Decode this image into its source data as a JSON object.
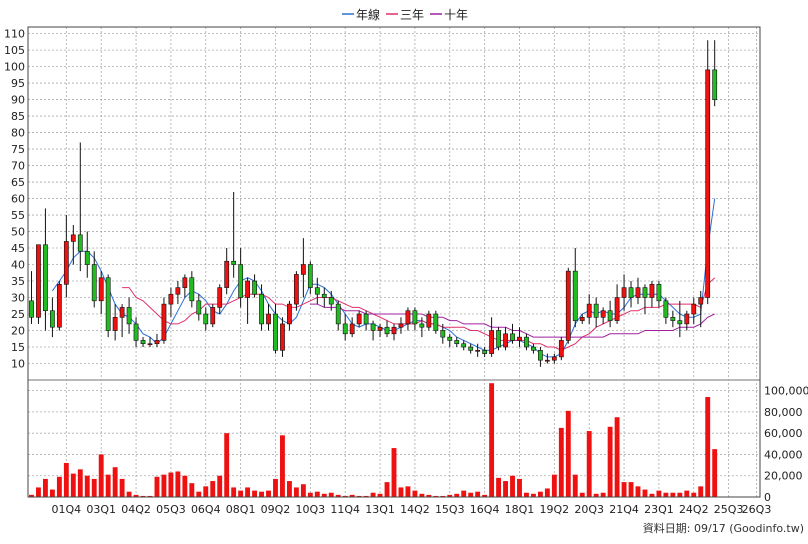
{
  "legend": [
    {
      "label": "年線",
      "color": "#2a6fd6"
    },
    {
      "label": "三年",
      "color": "#e0306a"
    },
    {
      "label": "十年",
      "color": "#a020a0"
    }
  ],
  "footer": "資料日期: 09/17  (Goodinfo.tw)",
  "colors": {
    "up": "#ee1111",
    "down": "#22bb22",
    "volume": "#ee1111",
    "grid": "#aaaaaa"
  },
  "chart_data": {
    "type": "candlestick",
    "price_axis": {
      "ylim": [
        5,
        112
      ],
      "ticks": [
        "10",
        "15",
        "20",
        "25",
        "30",
        "35",
        "40",
        "45",
        "50",
        "55",
        "60",
        "65",
        "70",
        "75",
        "80",
        "85",
        "90",
        "95",
        "100",
        "105",
        "110"
      ]
    },
    "volume_axis": {
      "ylim": [
        0,
        110000
      ],
      "ticks": [
        "0",
        "20,000",
        "40,000",
        "60,000",
        "80,000",
        "100,000"
      ]
    },
    "x_labels": [
      "01Q4",
      "03Q1",
      "04Q2",
      "05Q3",
      "06Q4",
      "08Q1",
      "09Q2",
      "10Q3",
      "11Q4",
      "13Q1",
      "14Q2",
      "15Q3",
      "16Q4",
      "18Q1",
      "19Q2",
      "20Q3",
      "21Q4",
      "23Q1",
      "24Q2",
      "25Q3",
      "26Q3"
    ],
    "label_positions": [
      5,
      10,
      15,
      20,
      25,
      30,
      35,
      40,
      45,
      50,
      55,
      60,
      65,
      70,
      75,
      80,
      85,
      90,
      95,
      100,
      104
    ],
    "quarters": 105,
    "candles": [
      [
        29,
        38,
        22,
        24
      ],
      [
        24,
        46,
        22,
        46
      ],
      [
        46,
        57,
        20,
        26
      ],
      [
        26,
        30,
        18,
        21
      ],
      [
        21,
        35,
        20,
        34
      ],
      [
        34,
        55,
        30,
        47
      ],
      [
        47,
        52,
        40,
        49
      ],
      [
        49,
        77,
        38,
        44
      ],
      [
        44,
        50,
        36,
        40
      ],
      [
        40,
        44,
        27,
        29
      ],
      [
        29,
        38,
        25,
        36
      ],
      [
        36,
        37,
        18,
        20
      ],
      [
        20,
        28,
        17,
        24
      ],
      [
        24,
        28,
        18,
        27
      ],
      [
        27,
        30,
        19,
        22
      ],
      [
        22,
        24,
        15,
        17
      ],
      [
        17,
        18,
        15,
        16
      ],
      [
        16,
        18,
        15,
        16
      ],
      [
        16,
        19,
        15,
        17
      ],
      [
        17,
        30,
        16,
        28
      ],
      [
        28,
        33,
        24,
        31
      ],
      [
        31,
        35,
        28,
        33
      ],
      [
        33,
        37,
        30,
        36
      ],
      [
        36,
        38,
        27,
        29
      ],
      [
        29,
        31,
        23,
        25
      ],
      [
        25,
        27,
        20,
        22
      ],
      [
        22,
        28,
        21,
        27
      ],
      [
        27,
        34,
        25,
        33
      ],
      [
        33,
        45,
        31,
        41
      ],
      [
        41,
        62,
        36,
        40
      ],
      [
        40,
        45,
        27,
        30
      ],
      [
        30,
        36,
        22,
        35
      ],
      [
        35,
        37,
        30,
        31
      ],
      [
        31,
        34,
        20,
        22
      ],
      [
        22,
        28,
        20,
        25
      ],
      [
        25,
        28,
        13,
        14
      ],
      [
        14,
        24,
        12,
        22
      ],
      [
        22,
        29,
        20,
        28
      ],
      [
        28,
        38,
        26,
        37
      ],
      [
        37,
        48,
        30,
        40
      ],
      [
        40,
        41,
        31,
        33
      ],
      [
        33,
        36,
        28,
        31
      ],
      [
        31,
        33,
        27,
        30
      ],
      [
        30,
        32,
        26,
        28
      ],
      [
        28,
        29,
        20,
        22
      ],
      [
        22,
        25,
        17,
        19
      ],
      [
        19,
        24,
        18,
        22
      ],
      [
        22,
        26,
        21,
        25
      ],
      [
        25,
        26,
        20,
        22
      ],
      [
        22,
        23,
        17,
        20
      ],
      [
        20,
        22,
        18,
        21
      ],
      [
        21,
        23,
        18,
        19
      ],
      [
        19,
        22,
        17,
        21
      ],
      [
        21,
        24,
        19,
        22
      ],
      [
        22,
        27,
        20,
        26
      ],
      [
        26,
        27,
        20,
        22
      ],
      [
        22,
        24,
        18,
        21
      ],
      [
        21,
        26,
        20,
        25
      ],
      [
        25,
        26,
        19,
        20
      ],
      [
        20,
        22,
        16,
        18
      ],
      [
        18,
        19,
        15,
        17
      ],
      [
        17,
        18,
        15,
        16
      ],
      [
        16,
        17,
        14,
        15
      ],
      [
        15,
        16,
        13,
        14
      ],
      [
        14,
        16,
        12,
        14
      ],
      [
        14,
        15,
        12,
        13
      ],
      [
        13,
        24,
        12,
        20
      ],
      [
        20,
        21,
        14,
        15
      ],
      [
        15,
        21,
        14,
        19
      ],
      [
        19,
        22,
        16,
        17
      ],
      [
        17,
        21,
        15,
        18
      ],
      [
        18,
        19,
        14,
        15
      ],
      [
        15,
        16,
        13,
        14
      ],
      [
        14,
        15,
        9,
        11
      ],
      [
        11,
        13,
        10,
        11
      ],
      [
        11,
        13,
        10,
        12
      ],
      [
        12,
        18,
        11,
        17
      ],
      [
        17,
        39,
        16,
        38
      ],
      [
        38,
        45,
        21,
        23
      ],
      [
        23,
        25,
        22,
        24
      ],
      [
        24,
        31,
        22,
        28
      ],
      [
        28,
        30,
        21,
        24
      ],
      [
        24,
        27,
        22,
        26
      ],
      [
        26,
        29,
        21,
        23
      ],
      [
        23,
        34,
        22,
        30
      ],
      [
        30,
        37,
        26,
        33
      ],
      [
        33,
        35,
        27,
        30
      ],
      [
        30,
        36,
        28,
        33
      ],
      [
        33,
        34,
        25,
        30
      ],
      [
        30,
        35,
        27,
        34
      ],
      [
        34,
        35,
        27,
        29
      ],
      [
        29,
        30,
        22,
        24
      ],
      [
        24,
        26,
        21,
        23
      ],
      [
        23,
        29,
        18,
        22
      ],
      [
        22,
        26,
        20,
        25
      ],
      [
        25,
        30,
        22,
        28
      ],
      [
        28,
        32,
        21,
        30
      ],
      [
        30,
        108,
        28,
        99
      ],
      [
        99,
        108,
        88,
        90
      ]
    ],
    "volumes": [
      2000,
      9000,
      17000,
      7000,
      19000,
      32000,
      22000,
      26000,
      20000,
      17000,
      40000,
      21000,
      28000,
      17000,
      5000,
      2000,
      1000,
      1000,
      19000,
      21000,
      23000,
      24000,
      20000,
      13000,
      5000,
      10000,
      15000,
      20000,
      60000,
      9000,
      6000,
      9000,
      6000,
      5000,
      6000,
      17000,
      58000,
      15000,
      9000,
      12000,
      4000,
      5000,
      3000,
      4000,
      2000,
      1000,
      2000,
      1000,
      1000,
      4000,
      3000,
      14000,
      46000,
      9000,
      10000,
      6000,
      3000,
      2000,
      1000,
      1000,
      2000,
      3000,
      6000,
      4000,
      5000,
      2000,
      107000,
      18000,
      15000,
      20000,
      17000,
      4000,
      3000,
      5000,
      8000,
      21000,
      65000,
      81000,
      21000,
      4000,
      62000,
      3000,
      4000,
      66000,
      75000,
      14000,
      14000,
      10000,
      7000,
      3000,
      6000,
      4000,
      4000,
      4000,
      6000,
      4000,
      10000,
      94000,
      45000
    ],
    "series": [
      {
        "name": "年線",
        "values": [
          null,
          null,
          null,
          32,
          35,
          38,
          42,
          44,
          44,
          42,
          38,
          33,
          28,
          25,
          24,
          22,
          19,
          18,
          16,
          18,
          22,
          26,
          30,
          32,
          31,
          29,
          26,
          25,
          28,
          32,
          35,
          36,
          35,
          32,
          28,
          25,
          23,
          22,
          24,
          29,
          34,
          34,
          33,
          31,
          28,
          25,
          22,
          21,
          22,
          22,
          21,
          20,
          20,
          21,
          22,
          23,
          23,
          22,
          22,
          21,
          20,
          18,
          17,
          16,
          15,
          14,
          14,
          15,
          16,
          17,
          17,
          16,
          15,
          13,
          12,
          12,
          13,
          17,
          22,
          25,
          26,
          25,
          26,
          25,
          25,
          27,
          30,
          31,
          31,
          31,
          31,
          29,
          27,
          25,
          24,
          24,
          25,
          45,
          60
        ]
      },
      {
        "name": "三年",
        "values": [
          null,
          null,
          null,
          null,
          null,
          null,
          null,
          null,
          null,
          null,
          null,
          null,
          null,
          33,
          33,
          30,
          29,
          27,
          25,
          23,
          22,
          22,
          23,
          25,
          26,
          28,
          28,
          28,
          28,
          29,
          30,
          31,
          31,
          31,
          30,
          28,
          28,
          27,
          27,
          28,
          29,
          30,
          30,
          30,
          29,
          28,
          27,
          27,
          26,
          25,
          24,
          23,
          22,
          22,
          22,
          22,
          23,
          22,
          22,
          21,
          21,
          21,
          21,
          20,
          20,
          19,
          18,
          17,
          17,
          17,
          17,
          17,
          16,
          16,
          15,
          15,
          14,
          15,
          16,
          18,
          19,
          21,
          22,
          23,
          24,
          25,
          26,
          26,
          27,
          27,
          27,
          28,
          28,
          28,
          28,
          28,
          27,
          34,
          36
        ]
      },
      {
        "name": "十年",
        "values": [
          null,
          null,
          null,
          null,
          null,
          null,
          null,
          null,
          null,
          null,
          null,
          null,
          null,
          null,
          null,
          null,
          null,
          null,
          null,
          null,
          null,
          null,
          null,
          null,
          null,
          null,
          null,
          null,
          null,
          null,
          null,
          null,
          null,
          null,
          null,
          null,
          null,
          null,
          null,
          null,
          28,
          28,
          27,
          27,
          27,
          26,
          26,
          26,
          25,
          25,
          25,
          25,
          25,
          25,
          25,
          25,
          25,
          24,
          24,
          24,
          23,
          23,
          22,
          22,
          22,
          22,
          21,
          21,
          21,
          20,
          20,
          19,
          18,
          18,
          18,
          18,
          18,
          18,
          18,
          18,
          18,
          18,
          18,
          19,
          19,
          19,
          19,
          19,
          20,
          20,
          20,
          20,
          20,
          21,
          21,
          21,
          22,
          24,
          25
        ]
      }
    ]
  }
}
